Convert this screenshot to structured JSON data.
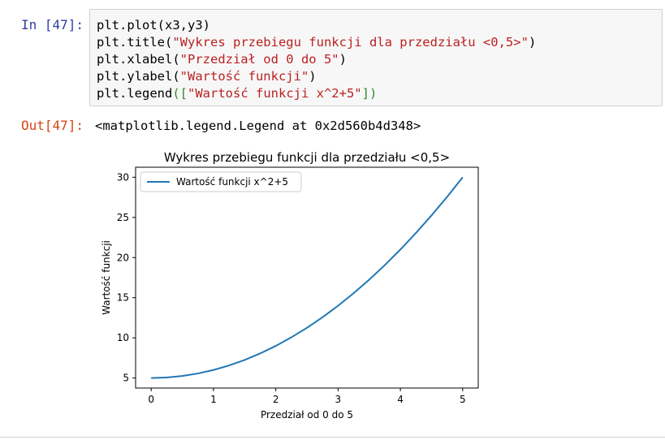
{
  "cell": {
    "in_prompt": "In [47]:",
    "out_prompt": "Out[47]:",
    "code_lines": [
      {
        "a": "plt.plot(x3,y3)",
        "s": "",
        "b": "",
        "c": "",
        "d": ""
      },
      {
        "a": "plt.title(",
        "s": "\"Wykres przebiegu funkcji dla przedziału <0,5>\"",
        "b": "",
        "c": "",
        "d": ")"
      },
      {
        "a": "plt.xlabel(",
        "s": "\"Przedział od 0 do 5\"",
        "b": "",
        "c": "",
        "d": ")"
      },
      {
        "a": "plt.ylabel(",
        "s": "\"Wartość funkcji\"",
        "b": "",
        "c": "",
        "d": ")"
      },
      {
        "a": "plt.legend",
        "b": "([",
        "s": "\"Wartość funkcji x^2+5\"",
        "c": "])",
        "d": ""
      }
    ],
    "output_text": "<matplotlib.legend.Legend at 0x2d560b4d348>"
  },
  "chart_data": {
    "type": "line",
    "title": "Wykres przebiegu funkcji dla przedziału <0,5>",
    "xlabel": "Przedział od 0 do 5",
    "ylabel": "Wartość funkcji",
    "xlim": [
      -0.25,
      5.25
    ],
    "ylim": [
      3.75,
      31.25
    ],
    "xticks": [
      0,
      1,
      2,
      3,
      4,
      5
    ],
    "yticks": [
      5,
      10,
      15,
      20,
      25,
      30
    ],
    "grid": false,
    "legend_placement": "top-left",
    "series": [
      {
        "name": "Wartość funkcji x^2+5",
        "color": "#1f77b4",
        "x": [
          0,
          0.25,
          0.5,
          0.75,
          1,
          1.25,
          1.5,
          1.75,
          2,
          2.25,
          2.5,
          2.75,
          3,
          3.25,
          3.5,
          3.75,
          4,
          4.25,
          4.5,
          4.75,
          5
        ],
        "y": [
          5,
          5.0625,
          5.25,
          5.5625,
          6,
          6.5625,
          7.25,
          8.0625,
          9,
          10.0625,
          11.25,
          12.5625,
          14,
          15.5625,
          17.25,
          19.0625,
          21,
          23.0625,
          25.25,
          27.5625,
          30
        ]
      }
    ]
  }
}
